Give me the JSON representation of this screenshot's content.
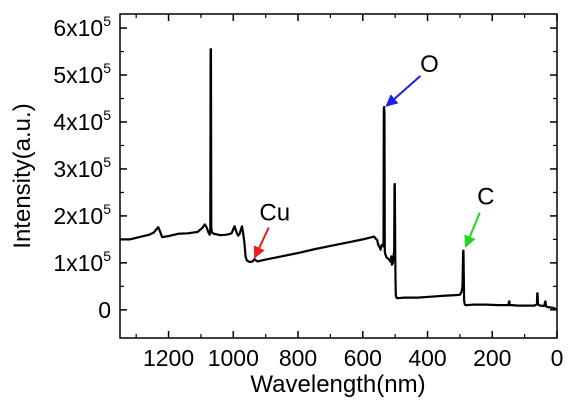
{
  "chart_data": {
    "type": "line",
    "title": "",
    "xlabel": "Wavelength(nm)",
    "ylabel": "Intensity(a.u.)",
    "xlim": [
      1350,
      0
    ],
    "ylim": [
      -60000,
      630000
    ],
    "x_reversed": true,
    "x_ticks": [
      1200,
      1000,
      800,
      600,
      400,
      200,
      0
    ],
    "x_tick_labels": [
      "1200",
      "1000",
      "800",
      "600",
      "400",
      "200",
      "0"
    ],
    "y_ticks": [
      0,
      100000,
      200000,
      300000,
      400000,
      500000,
      600000
    ],
    "y_tick_labels": [
      {
        "mant": "0",
        "exp": ""
      },
      {
        "mant": "1x10",
        "exp": "5"
      },
      {
        "mant": "2x10",
        "exp": "5"
      },
      {
        "mant": "3x10",
        "exp": "5"
      },
      {
        "mant": "4x10",
        "exp": "5"
      },
      {
        "mant": "5x10",
        "exp": "5"
      },
      {
        "mant": "6x10",
        "exp": "5"
      }
    ],
    "line_color": "#000000",
    "series": [
      {
        "x": [
          1350,
          1320,
          1290,
          1260,
          1245,
          1237,
          1232,
          1228,
          1220,
          1200,
          1170,
          1140,
          1110,
          1095,
          1088,
          1082,
          1077,
          1073,
          1071,
          1070,
          1069,
          1068,
          1066,
          1060,
          1040,
          1020,
          1005,
          1000,
          996,
          990,
          985,
          980,
          977,
          973,
          970,
          966,
          962,
          958,
          950,
          940,
          935,
          925,
          900,
          850,
          800,
          750,
          700,
          650,
          600,
          565,
          558,
          555,
          553,
          550,
          547,
          545,
          542,
          538,
          536,
          535,
          534,
          533,
          532,
          530,
          527,
          520,
          515,
          513,
          512,
          510,
          507,
          505,
          503,
          502,
          501,
          500,
          499,
          498,
          496,
          494,
          492,
          490,
          470,
          430,
          390,
          350,
          320,
          300,
          295,
          292,
          290,
          289,
          288,
          287,
          285,
          283,
          280,
          260,
          220,
          180,
          150,
          148,
          147,
          146,
          140,
          120,
          100,
          70,
          62,
          61,
          60,
          59,
          57,
          50,
          40,
          36,
          35,
          34,
          30,
          20,
          10,
          0
        ],
        "y": [
          150000,
          150000,
          155000,
          160000,
          165000,
          172000,
          176000,
          170000,
          155000,
          157000,
          162000,
          163000,
          166000,
          175000,
          182000,
          175000,
          165000,
          160000,
          165000,
          555000,
          555000,
          175000,
          165000,
          162000,
          159000,
          160000,
          163000,
          172000,
          178000,
          165000,
          158000,
          162000,
          170000,
          178000,
          165000,
          145000,
          113000,
          105000,
          102000,
          103000,
          108000,
          103000,
          107000,
          114000,
          121000,
          129000,
          136000,
          143000,
          150000,
          156000,
          150000,
          148000,
          140000,
          135000,
          133000,
          128000,
          138000,
          138000,
          135000,
          430000,
          432000,
          420000,
          123000,
          118000,
          112000,
          108000,
          103000,
          108000,
          114000,
          96000,
          100000,
          115000,
          125000,
          265000,
          268000,
          150000,
          70000,
          32000,
          26000,
          25000,
          25000,
          25000,
          26000,
          26000,
          28000,
          30000,
          31000,
          32000,
          38000,
          50000,
          125000,
          126000,
          75000,
          20000,
          12000,
          10000,
          10000,
          11000,
          11000,
          10000,
          10000,
          18000,
          18000,
          10000,
          10000,
          9000,
          9000,
          9000,
          12000,
          35000,
          35000,
          15000,
          10000,
          9000,
          8000,
          18000,
          15000,
          8000,
          6000,
          5000,
          4000,
          0
        ]
      }
    ],
    "annotations": [
      {
        "text": "O",
        "x": 533,
        "y": 430000,
        "color": "#1f1fe6"
      },
      {
        "text": "Cu",
        "x": 940,
        "y": 105000,
        "color": "#e61f1f"
      },
      {
        "text": "C",
        "x": 288,
        "y": 126000,
        "color": "#1fd81f"
      }
    ]
  }
}
